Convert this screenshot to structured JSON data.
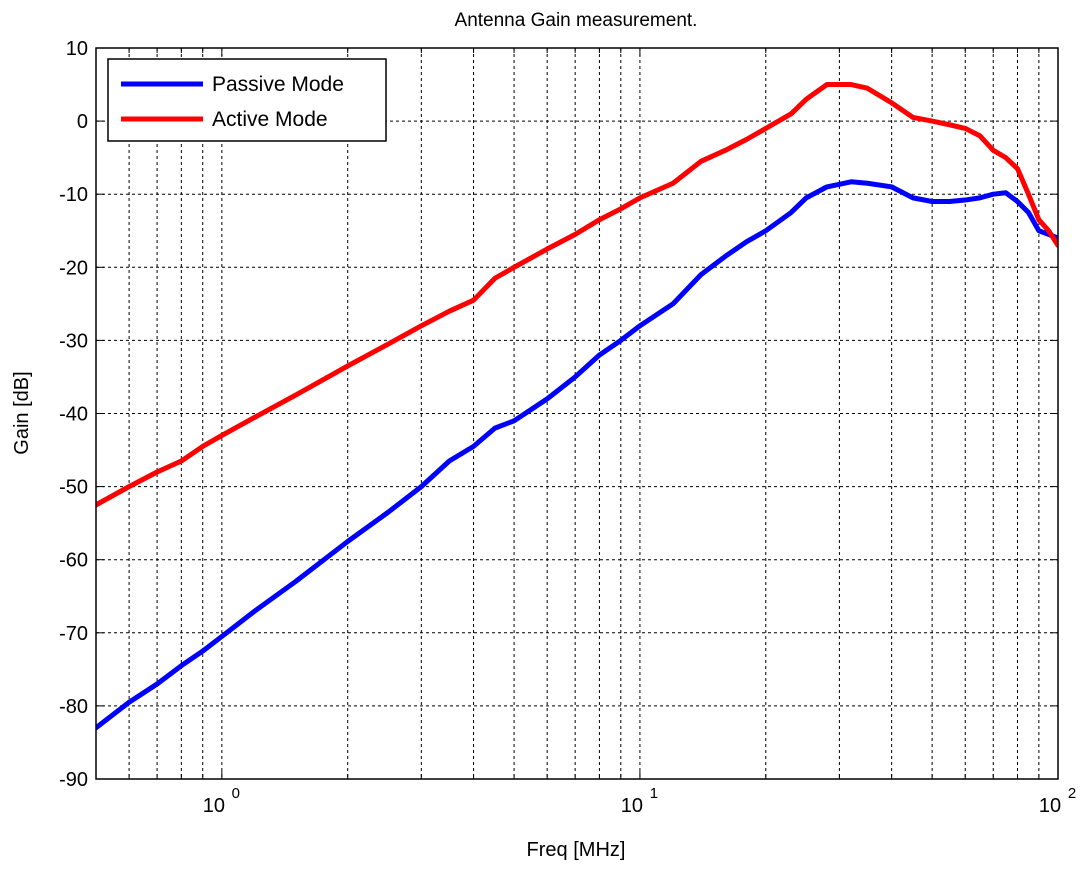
{
  "chart_data": {
    "type": "line",
    "title": "Antenna Gain measurement.",
    "xlabel": "Freq [MHz]",
    "ylabel": "Gain [dB]",
    "x_scale": "log",
    "xlim": [
      0.5,
      100
    ],
    "ylim": [
      -90,
      10
    ],
    "grid": true,
    "legend_position": "top-left",
    "x_ticks": [
      {
        "value": 1,
        "base": "10",
        "exp": "0"
      },
      {
        "value": 10,
        "base": "10",
        "exp": "1"
      },
      {
        "value": 100,
        "base": "10",
        "exp": "2"
      }
    ],
    "y_ticks": [
      "10",
      "0",
      "-10",
      "-20",
      "-30",
      "-40",
      "-50",
      "-60",
      "-70",
      "-80",
      "-90"
    ],
    "series": [
      {
        "name": "Passive Mode",
        "color": "#0000ff",
        "points": [
          [
            0.5,
            -83
          ],
          [
            0.6,
            -79.5
          ],
          [
            0.7,
            -77
          ],
          [
            0.8,
            -74.5
          ],
          [
            0.9,
            -72.5
          ],
          [
            1.0,
            -70.5
          ],
          [
            1.2,
            -67
          ],
          [
            1.5,
            -63
          ],
          [
            2.0,
            -57.5
          ],
          [
            2.5,
            -53.5
          ],
          [
            3.0,
            -50
          ],
          [
            3.5,
            -46.5
          ],
          [
            4.0,
            -44.5
          ],
          [
            4.5,
            -42
          ],
          [
            5.0,
            -41
          ],
          [
            6.0,
            -38
          ],
          [
            7.0,
            -35
          ],
          [
            8.0,
            -32
          ],
          [
            9.0,
            -30
          ],
          [
            10,
            -28
          ],
          [
            12,
            -25
          ],
          [
            14,
            -21
          ],
          [
            16,
            -18.5
          ],
          [
            18,
            -16.5
          ],
          [
            20,
            -15
          ],
          [
            23,
            -12.5
          ],
          [
            25,
            -10.5
          ],
          [
            28,
            -9
          ],
          [
            32,
            -8.3
          ],
          [
            35,
            -8.5
          ],
          [
            40,
            -9
          ],
          [
            45,
            -10.5
          ],
          [
            50,
            -11
          ],
          [
            55,
            -11
          ],
          [
            60,
            -10.8
          ],
          [
            65,
            -10.5
          ],
          [
            70,
            -10
          ],
          [
            75,
            -9.8
          ],
          [
            80,
            -11
          ],
          [
            85,
            -12.5
          ],
          [
            90,
            -15
          ],
          [
            95,
            -15.5
          ],
          [
            100,
            -16
          ]
        ]
      },
      {
        "name": "Active Mode",
        "color": "#ff0000",
        "points": [
          [
            0.5,
            -52.5
          ],
          [
            0.6,
            -50
          ],
          [
            0.7,
            -48
          ],
          [
            0.8,
            -46.5
          ],
          [
            0.9,
            -44.5
          ],
          [
            1.0,
            -43
          ],
          [
            1.2,
            -40.5
          ],
          [
            1.5,
            -37.5
          ],
          [
            2.0,
            -33.5
          ],
          [
            2.5,
            -30.5
          ],
          [
            3.0,
            -28
          ],
          [
            3.5,
            -26
          ],
          [
            4.0,
            -24.5
          ],
          [
            4.5,
            -21.5
          ],
          [
            5.0,
            -20
          ],
          [
            6.0,
            -17.5
          ],
          [
            7.0,
            -15.5
          ],
          [
            8.0,
            -13.5
          ],
          [
            9.0,
            -12
          ],
          [
            10,
            -10.5
          ],
          [
            12,
            -8.5
          ],
          [
            14,
            -5.5
          ],
          [
            16,
            -4
          ],
          [
            18,
            -2.5
          ],
          [
            20,
            -1
          ],
          [
            23,
            1
          ],
          [
            25,
            3
          ],
          [
            28,
            5
          ],
          [
            32,
            5
          ],
          [
            35,
            4.5
          ],
          [
            40,
            2.5
          ],
          [
            45,
            0.5
          ],
          [
            50,
            0
          ],
          [
            55,
            -0.5
          ],
          [
            60,
            -1
          ],
          [
            65,
            -2
          ],
          [
            70,
            -4
          ],
          [
            75,
            -5
          ],
          [
            80,
            -6.5
          ],
          [
            85,
            -10
          ],
          [
            90,
            -13.5
          ],
          [
            95,
            -15
          ],
          [
            100,
            -17
          ]
        ]
      }
    ]
  }
}
